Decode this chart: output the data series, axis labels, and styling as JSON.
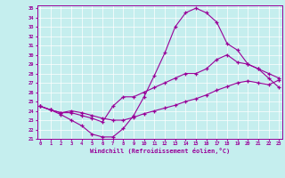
{
  "xlabel": "Windchill (Refroidissement éolien,°C)",
  "bg_color": "#c5eeee",
  "line_color": "#990099",
  "grid_color": "#ffffff",
  "xmin": 0,
  "xmax": 23,
  "ymin": 21,
  "ymax": 35,
  "hours": [
    0,
    1,
    2,
    3,
    4,
    5,
    6,
    7,
    8,
    9,
    10,
    11,
    12,
    13,
    14,
    15,
    16,
    17,
    18,
    19,
    20,
    21,
    22,
    23
  ],
  "line1": [
    24.5,
    24.1,
    23.6,
    23.0,
    22.4,
    21.5,
    21.2,
    21.2,
    22.1,
    23.5,
    25.5,
    27.8,
    30.2,
    33.0,
    34.5,
    35.0,
    34.5,
    33.5,
    31.2,
    30.5,
    29.0,
    28.5,
    27.5,
    26.5
  ],
  "line2": [
    24.5,
    24.1,
    23.8,
    23.8,
    23.5,
    23.2,
    22.8,
    24.5,
    25.5,
    25.5,
    26.0,
    26.5,
    27.0,
    27.5,
    28.0,
    28.0,
    28.5,
    29.5,
    30.0,
    29.2,
    29.0,
    28.5,
    28.0,
    27.5
  ],
  "line3": [
    24.5,
    24.1,
    23.8,
    24.0,
    23.8,
    23.5,
    23.2,
    23.0,
    23.0,
    23.3,
    23.7,
    24.0,
    24.3,
    24.6,
    25.0,
    25.3,
    25.7,
    26.2,
    26.6,
    27.0,
    27.2,
    27.0,
    26.8,
    27.3
  ]
}
